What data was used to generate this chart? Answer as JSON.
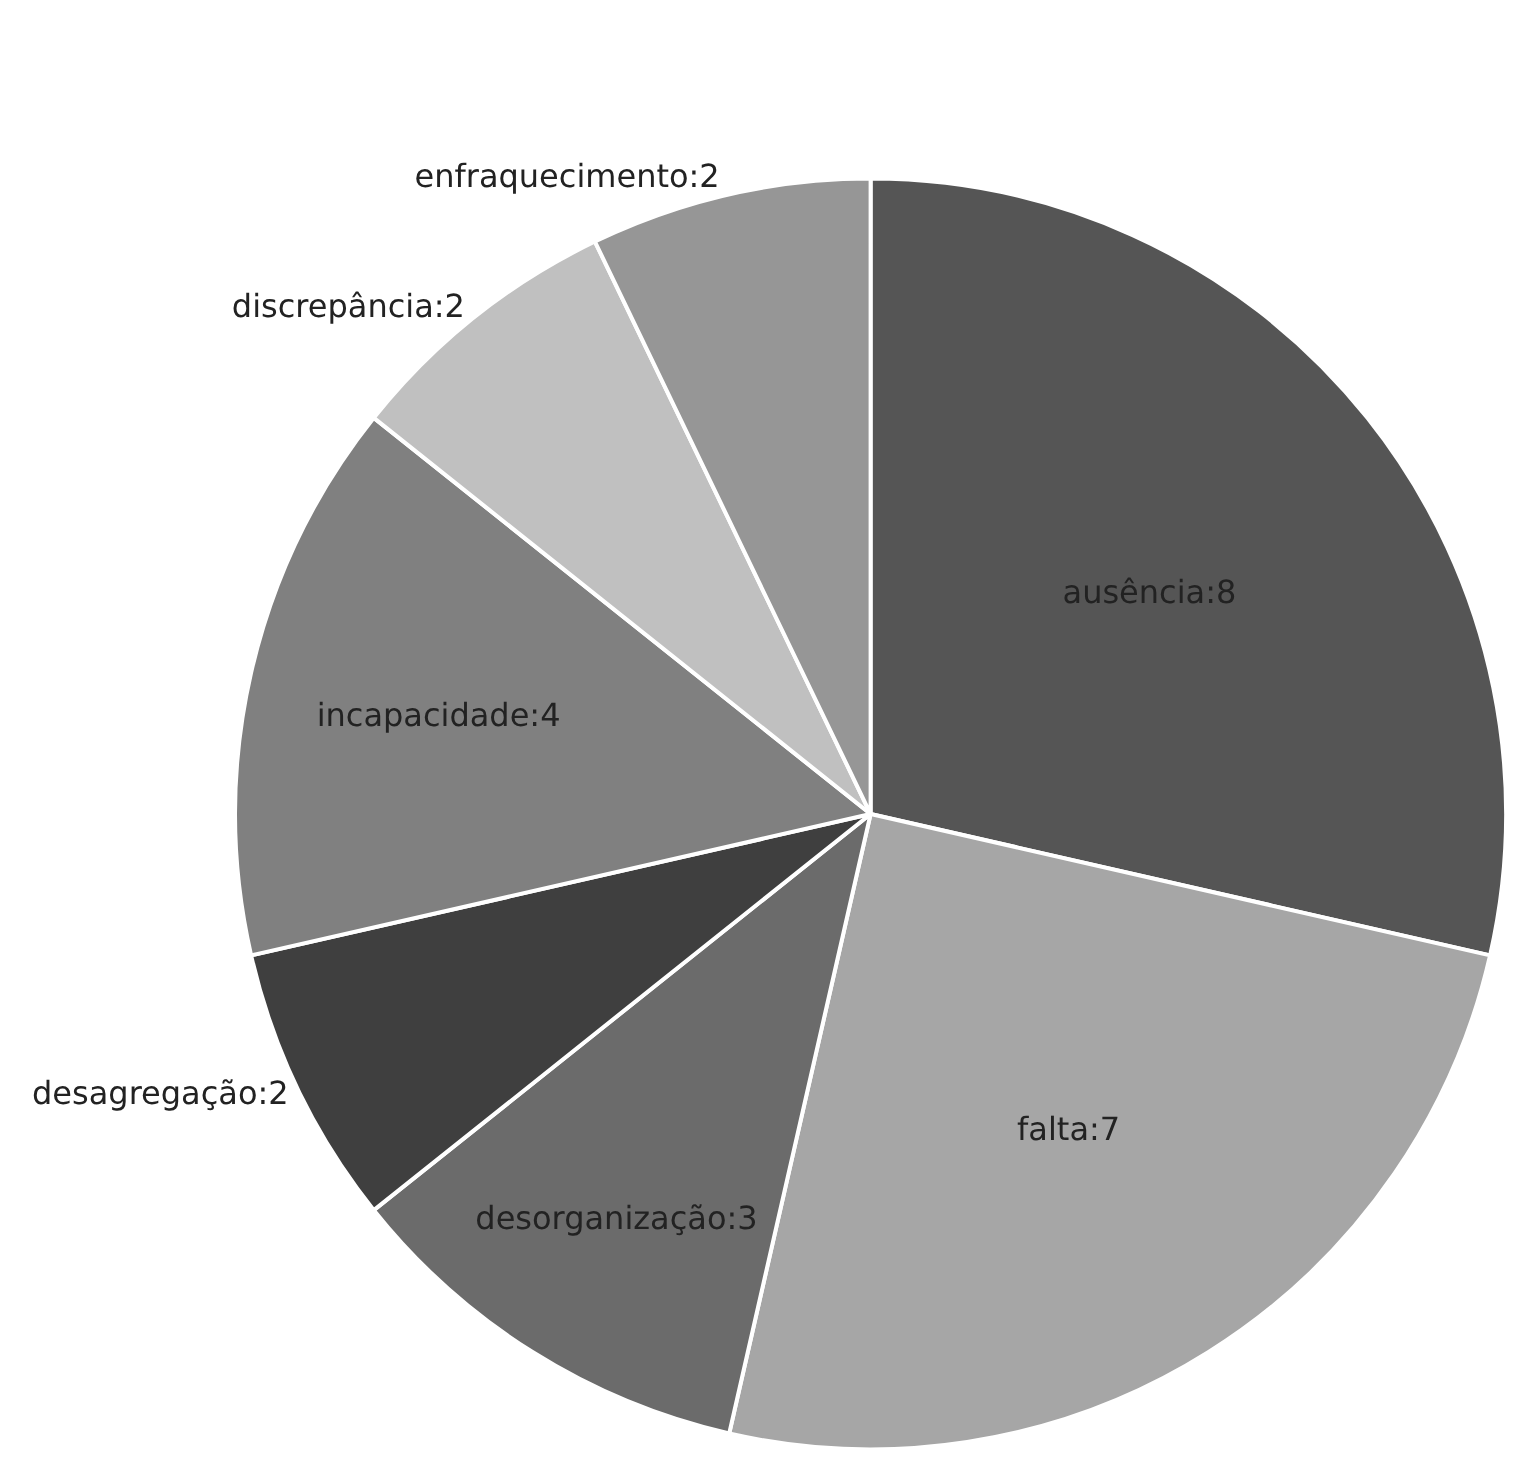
{
  "chart_data": {
    "type": "pie",
    "categories": [
      "ausência",
      "falta",
      "desorganização",
      "desagregação",
      "incapacidade",
      "discrepância",
      "enfraquecimento"
    ],
    "values": [
      8,
      7,
      3,
      2,
      4,
      2,
      2
    ],
    "colors": [
      "#555555",
      "#a6a6a6",
      "#6b6b6b",
      "#3f3f3f",
      "#808080",
      "#c0c0c0",
      "#969696"
    ],
    "value_labels": [
      ":8",
      ":7",
      ":3",
      ":2",
      ":4",
      ":2",
      ":2"
    ],
    "legend": false
  }
}
